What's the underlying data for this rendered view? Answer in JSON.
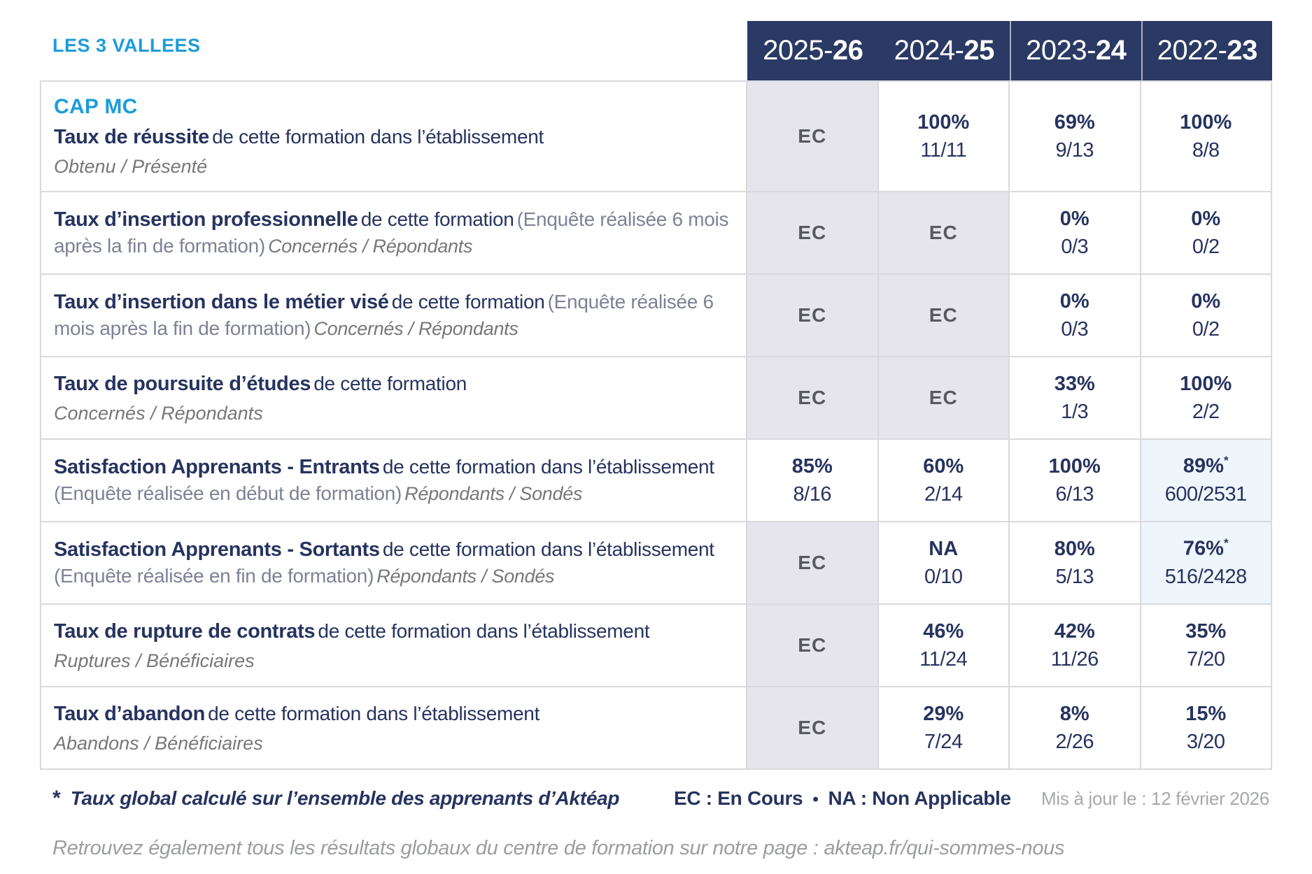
{
  "title": "LES 3 VALLEES",
  "course": "CAP MC",
  "columns": [
    {
      "prefix": "2025-",
      "suffix": "26"
    },
    {
      "prefix": "2024-",
      "suffix": "25"
    },
    {
      "prefix": "2023-",
      "suffix": "24"
    },
    {
      "prefix": "2022-",
      "suffix": "23"
    }
  ],
  "rows": [
    {
      "label_bold": "Taux de réussite",
      "label_normal": "de cette formation dans l’établissement",
      "label_paren": "",
      "label_sub": "Obtenu / Présenté",
      "cells": [
        {
          "type": "ec",
          "text": "EC"
        },
        {
          "type": "value",
          "pct": "100%",
          "frac": "11/11"
        },
        {
          "type": "value",
          "pct": "69%",
          "frac": "9/13"
        },
        {
          "type": "value",
          "pct": "100%",
          "frac": "8/8"
        }
      ]
    },
    {
      "label_bold": "Taux d’insertion professionnelle",
      "label_normal": "de cette formation",
      "label_paren": "(Enquête réalisée 6 mois après la fin de formation)",
      "label_sub": "Concernés / Répondants",
      "cells": [
        {
          "type": "ec",
          "text": "EC"
        },
        {
          "type": "ec",
          "text": "EC"
        },
        {
          "type": "value",
          "pct": "0%",
          "frac": "0/3"
        },
        {
          "type": "value",
          "pct": "0%",
          "frac": "0/2"
        }
      ]
    },
    {
      "label_bold": "Taux d’insertion dans le métier visé",
      "label_normal": "de cette formation",
      "label_paren": "(Enquête réalisée 6 mois après la fin de formation)",
      "label_sub": "Concernés / Répondants",
      "cells": [
        {
          "type": "ec",
          "text": "EC"
        },
        {
          "type": "ec",
          "text": "EC"
        },
        {
          "type": "value",
          "pct": "0%",
          "frac": "0/3"
        },
        {
          "type": "value",
          "pct": "0%",
          "frac": "0/2"
        }
      ]
    },
    {
      "label_bold": "Taux de poursuite d’études",
      "label_normal": "de cette formation",
      "label_paren": "",
      "label_sub": "Concernés / Répondants",
      "cells": [
        {
          "type": "ec",
          "text": "EC"
        },
        {
          "type": "ec",
          "text": "EC"
        },
        {
          "type": "value",
          "pct": "33%",
          "frac": "1/3"
        },
        {
          "type": "value",
          "pct": "100%",
          "frac": "2/2"
        }
      ]
    },
    {
      "label_bold": "Satisfaction Apprenants - Entrants",
      "label_normal": "de cette formation dans l’établissement",
      "label_paren": "(Enquête réalisée en début de formation)",
      "label_sub": "Répondants / Sondés",
      "cells": [
        {
          "type": "value",
          "pct": "85%",
          "frac": "8/16"
        },
        {
          "type": "value",
          "pct": "60%",
          "frac": "2/14"
        },
        {
          "type": "value",
          "pct": "100%",
          "frac": "6/13"
        },
        {
          "type": "value",
          "pct": "89%",
          "star": "*",
          "frac": "600/2531",
          "highlight": true
        }
      ]
    },
    {
      "label_bold": "Satisfaction Apprenants - Sortants",
      "label_normal": "de cette formation dans l’établissement",
      "label_paren": "(Enquête réalisée en fin de formation)",
      "label_sub": "Répondants / Sondés",
      "cells": [
        {
          "type": "ec",
          "text": "EC"
        },
        {
          "type": "value",
          "pct": "NA",
          "frac": "0/10"
        },
        {
          "type": "value",
          "pct": "80%",
          "frac": "5/13"
        },
        {
          "type": "value",
          "pct": "76%",
          "star": "*",
          "frac": "516/2428",
          "highlight": true
        }
      ]
    },
    {
      "label_bold": "Taux de rupture de contrats",
      "label_normal": "de cette formation dans l’établissement",
      "label_paren": "",
      "label_sub": "Ruptures / Bénéficiaires",
      "cells": [
        {
          "type": "ec",
          "text": "EC"
        },
        {
          "type": "value",
          "pct": "46%",
          "frac": "11/24"
        },
        {
          "type": "value",
          "pct": "42%",
          "frac": "11/26"
        },
        {
          "type": "value",
          "pct": "35%",
          "frac": "7/20"
        }
      ]
    },
    {
      "label_bold": "Taux d’abandon",
      "label_normal": "de cette formation dans l’établissement",
      "label_paren": "",
      "label_sub": "Abandons / Bénéficiaires",
      "cells": [
        {
          "type": "ec",
          "text": "EC"
        },
        {
          "type": "value",
          "pct": "29%",
          "frac": "7/24"
        },
        {
          "type": "value",
          "pct": "8%",
          "frac": "2/26"
        },
        {
          "type": "value",
          "pct": "15%",
          "frac": "3/20"
        }
      ]
    }
  ],
  "footer": {
    "note_star": "*",
    "note_text": "Taux global calculé sur l’ensemble des apprenants d’Aktéap",
    "legend_ec": "EC : En Cours",
    "legend_sep": "•",
    "legend_na": "NA : Non Applicable",
    "updated": "Mis à jour le : 12 février 2026",
    "bottom_note": "Retrouvez également tous les résultats globaux du centre de formation sur notre page : akteap.fr/qui-sommes-nous"
  },
  "colors": {
    "header_bg": "#2b3a64",
    "year_separator": "#a9aec6",
    "navy_text": "#27335f",
    "accent_blue": "#1d9cd9",
    "ec_bg": "#e6e5ed",
    "ec_text": "#58595e",
    "highlight_bg": "#eef5fb",
    "border": "#d9d9de",
    "gray_text": "#7d8295",
    "sub_gray": "#76777b",
    "muted_gray": "#a6a8ab",
    "bottom_gray": "#9b9da0"
  }
}
